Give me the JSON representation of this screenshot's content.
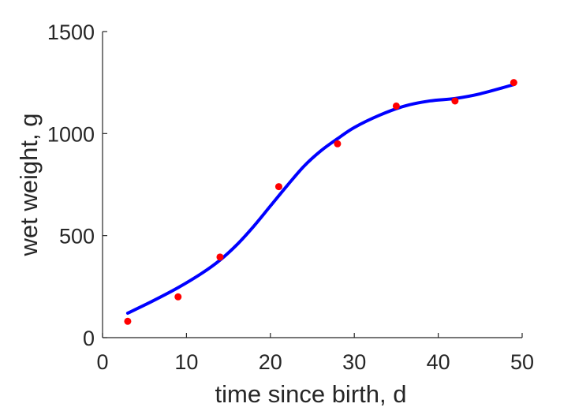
{
  "chart_data": {
    "type": "scatter",
    "title": "",
    "xlabel": "time since birth, d",
    "ylabel": "wet weight, g",
    "xlim": [
      0,
      50
    ],
    "ylim": [
      0,
      1500
    ],
    "xticks": [
      0,
      10,
      20,
      30,
      40,
      50
    ],
    "yticks": [
      0,
      500,
      1000,
      1500
    ],
    "grid": false,
    "legend": "none",
    "series": [
      {
        "type": "scatter",
        "color": "#ff0000",
        "x": [
          3,
          9,
          14,
          21,
          28,
          35,
          42,
          49
        ],
        "y": [
          80,
          200,
          395,
          740,
          950,
          1135,
          1160,
          1250
        ]
      },
      {
        "type": "line",
        "color": "#0000ff",
        "x": [
          3,
          6,
          9,
          12,
          14,
          16,
          18,
          20,
          22,
          24,
          26,
          28,
          30,
          33,
          36,
          39,
          42,
          45,
          49
        ],
        "y": [
          120,
          180,
          245,
          320,
          380,
          455,
          545,
          645,
          745,
          840,
          915,
          975,
          1030,
          1090,
          1135,
          1160,
          1172,
          1195,
          1240
        ]
      }
    ]
  }
}
